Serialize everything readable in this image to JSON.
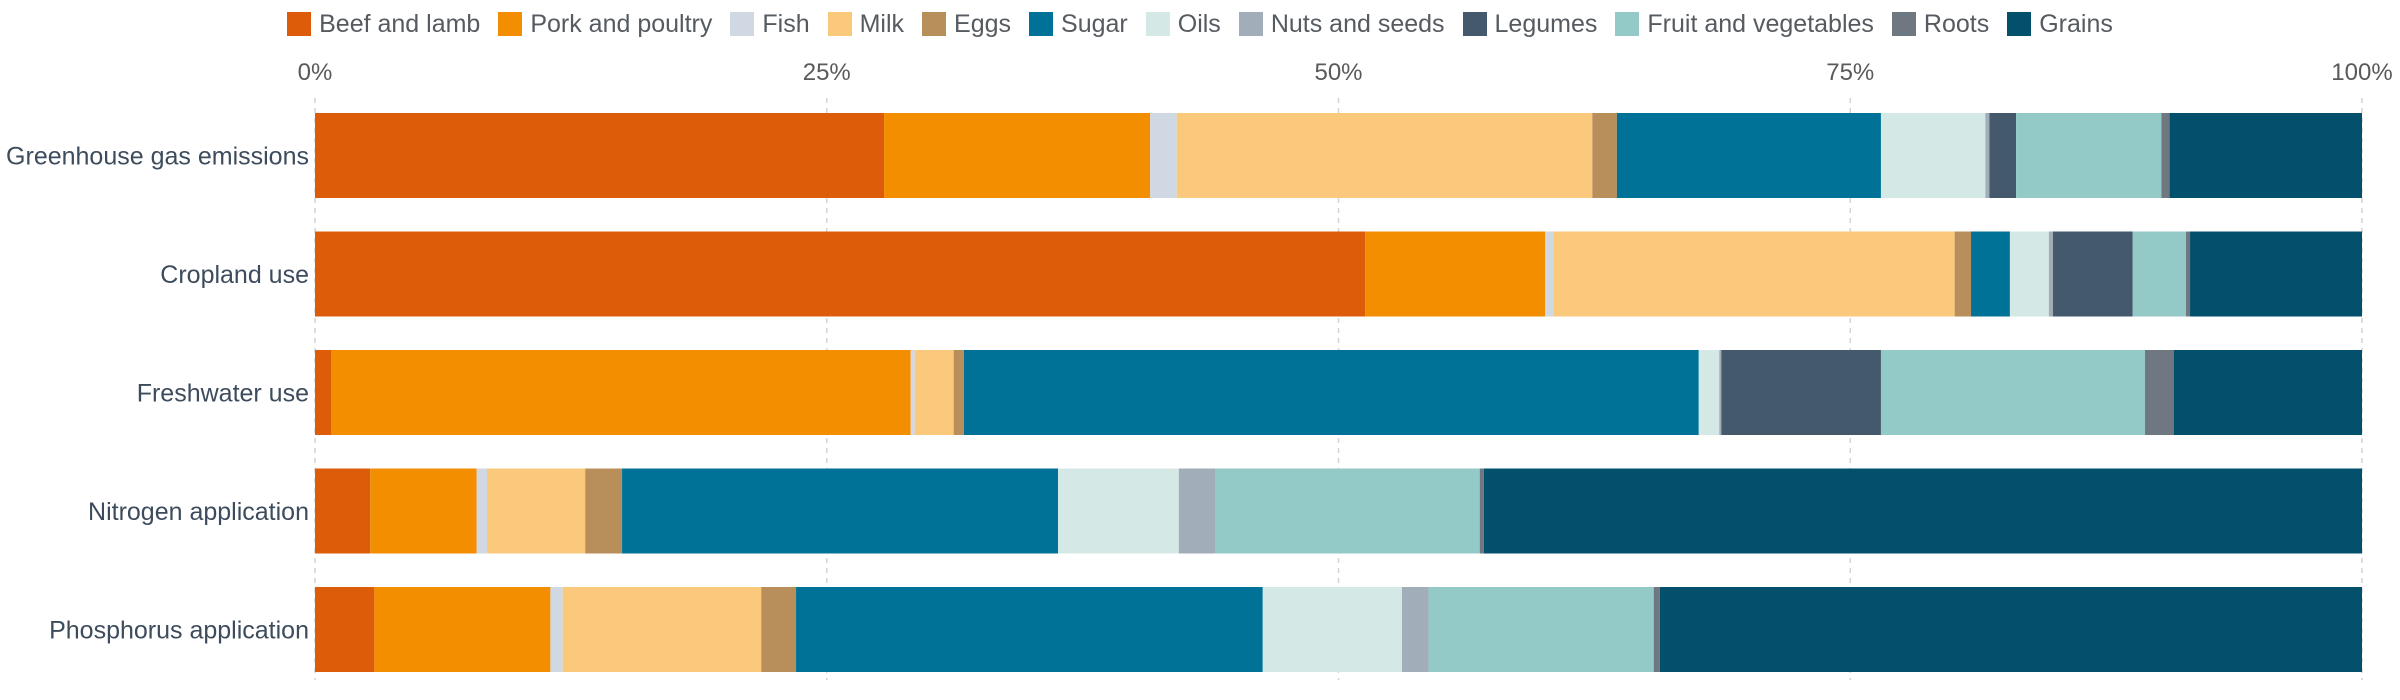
{
  "chart_data": {
    "type": "bar",
    "orientation": "horizontal",
    "stacked": true,
    "xlim": [
      0,
      100
    ],
    "x_ticks": [
      0,
      25,
      50,
      75,
      100
    ],
    "x_tick_labels": [
      "0%",
      "25%",
      "50%",
      "75%",
      "100%"
    ],
    "grid": true,
    "legend_position": "top",
    "categories": [
      "Greenhouse gas emissions",
      "Cropland use",
      "Freshwater use",
      "Nitrogen application",
      "Phosphorus application"
    ],
    "series": [
      {
        "name": "Beef and lamb",
        "color": "#dd5c0a",
        "values": [
          27.8,
          51.3,
          0.8,
          2.7,
          2.9
        ]
      },
      {
        "name": "Pork and poultry",
        "color": "#f28e00",
        "values": [
          13.0,
          8.8,
          28.3,
          5.2,
          8.6
        ]
      },
      {
        "name": "Fish",
        "color": "#d0d9e3",
        "values": [
          1.3,
          0.4,
          0.2,
          0.5,
          0.6
        ]
      },
      {
        "name": "Milk",
        "color": "#fbc97c",
        "values": [
          20.3,
          19.6,
          1.9,
          4.8,
          9.7
        ]
      },
      {
        "name": "Eggs",
        "color": "#b88f5a",
        "values": [
          1.2,
          0.8,
          0.5,
          1.8,
          1.7
        ]
      },
      {
        "name": "Sugar",
        "color": "#007298",
        "values": [
          12.9,
          1.9,
          35.9,
          21.3,
          22.8
        ]
      },
      {
        "name": "Oils",
        "color": "#d4e8e6",
        "values": [
          5.1,
          1.9,
          1.0,
          5.9,
          6.8
        ]
      },
      {
        "name": "Nuts and seeds",
        "color": "#a1aeb9",
        "values": [
          0.2,
          0.2,
          0.1,
          1.8,
          1.3
        ]
      },
      {
        "name": "Legumes",
        "color": "#45596d",
        "values": [
          1.3,
          3.9,
          7.8,
          0.0,
          0.0
        ]
      },
      {
        "name": "Fruit and vegetables",
        "color": "#93c9c7",
        "values": [
          7.1,
          2.6,
          12.9,
          12.9,
          11.0
        ]
      },
      {
        "name": "Roots",
        "color": "#6f7880",
        "values": [
          0.4,
          0.2,
          1.4,
          0.2,
          0.3
        ]
      },
      {
        "name": "Grains",
        "color": "#03506c",
        "values": [
          9.4,
          8.4,
          9.2,
          42.9,
          34.3
        ]
      }
    ]
  }
}
